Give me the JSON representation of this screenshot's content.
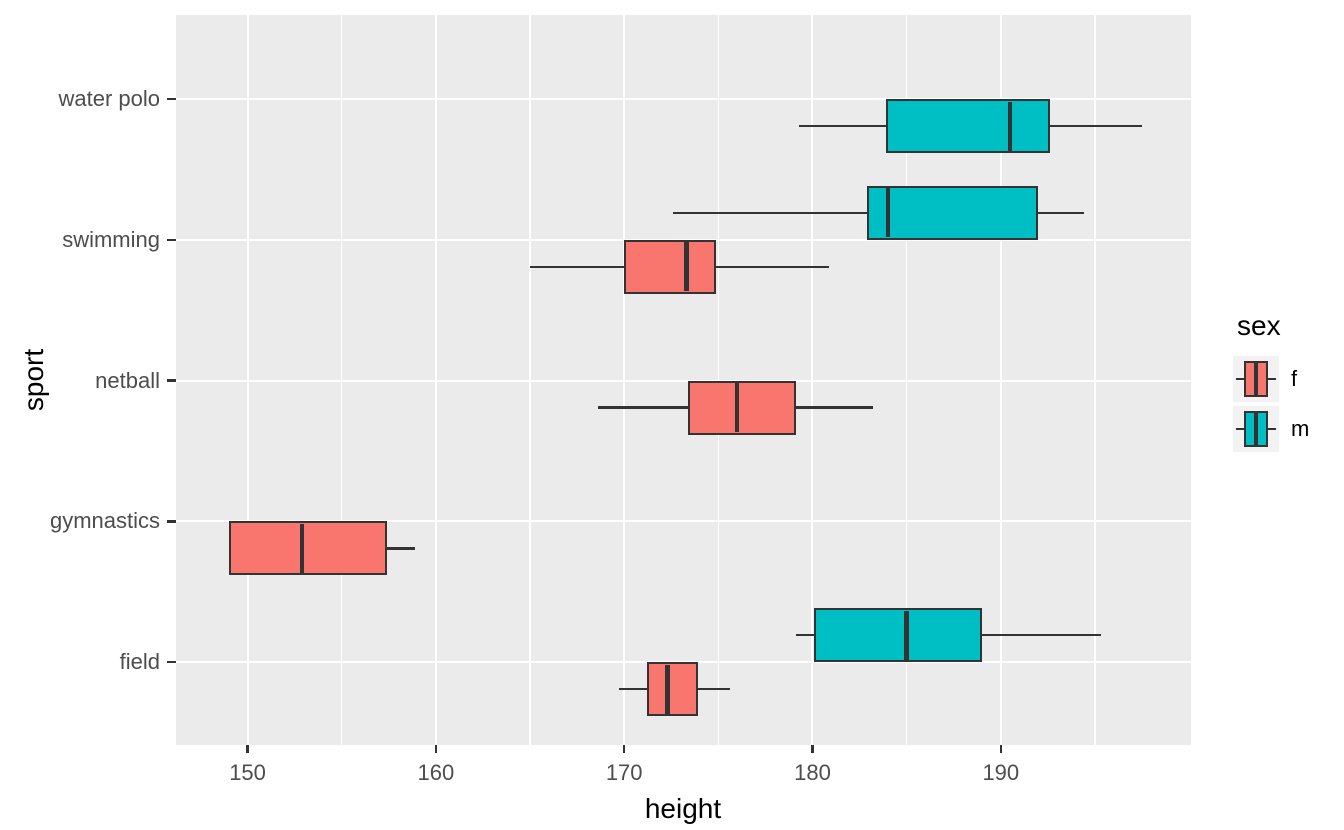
{
  "chart_data": {
    "type": "boxplot",
    "orientation": "horizontal",
    "xlabel": "height",
    "ylabel": "sport",
    "xlim": [
      146.2,
      200.1
    ],
    "x_major_ticks": [
      150,
      160,
      170,
      180,
      190
    ],
    "x_minor_gridlines": [
      155,
      165,
      175,
      185,
      195
    ],
    "categories_top_to_bottom": [
      "water polo",
      "swimming",
      "netball",
      "gymnastics",
      "field"
    ],
    "grid": "major-and-minor-x, major-y, white on grey panel",
    "legend": {
      "title": "sex",
      "position": "right",
      "entries": [
        {
          "label": "f",
          "color": "#F8766D"
        },
        {
          "label": "m",
          "color": "#00BFC4"
        }
      ]
    },
    "series": [
      {
        "sport": "water polo",
        "sex": "m",
        "whisker_low": 179.3,
        "q1": 183.9,
        "median": 190.5,
        "q3": 192.6,
        "whisker_high": 197.5
      },
      {
        "sport": "swimming",
        "sex": "m",
        "whisker_low": 172.6,
        "q1": 182.9,
        "median": 184.0,
        "q3": 192.0,
        "whisker_high": 194.4
      },
      {
        "sport": "swimming",
        "sex": "f",
        "whisker_low": 165.0,
        "q1": 170.0,
        "median": 173.3,
        "q3": 174.9,
        "whisker_high": 180.9
      },
      {
        "sport": "netball",
        "sex": "f",
        "whisker_low": 168.6,
        "q1": 173.4,
        "median": 176.0,
        "q3": 179.1,
        "whisker_high": 183.2
      },
      {
        "sport": "gymnastics",
        "sex": "f",
        "whisker_low": 149.0,
        "q1": 149.0,
        "median": 152.9,
        "q3": 157.4,
        "whisker_high": 158.9
      },
      {
        "sport": "field",
        "sex": "m",
        "whisker_low": 179.1,
        "q1": 180.1,
        "median": 185.0,
        "q3": 189.0,
        "whisker_high": 195.3
      },
      {
        "sport": "field",
        "sex": "f",
        "whisker_low": 169.7,
        "q1": 171.2,
        "median": 172.3,
        "q3": 173.9,
        "whisker_high": 175.6
      }
    ],
    "colors": {
      "panel_background": "#EBEBEB",
      "gridline": "#FFFFFF",
      "box_outline": "#333333",
      "tick_text": "#4D4D4D",
      "title_text": "#000000",
      "fill_f": "#F8766D",
      "fill_m": "#00BFC4",
      "legend_key_background": "#F2F2F2"
    }
  }
}
